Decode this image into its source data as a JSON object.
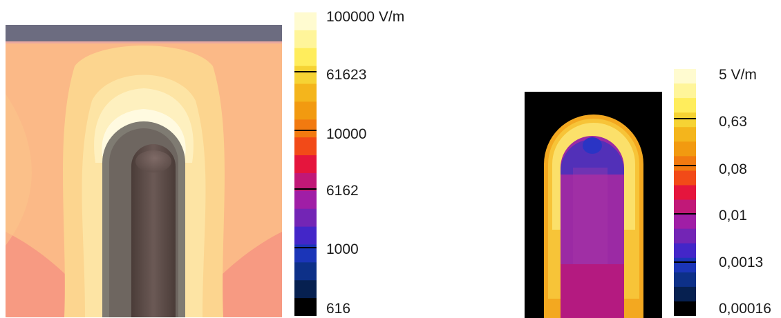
{
  "left_panel": {
    "colors": [
      "#fffbd0",
      "#fff59a",
      "#ffed5c",
      "#f6d334",
      "#f4b51c",
      "#f29a10",
      "#f27a10",
      "#f24a18",
      "#e5153d",
      "#c11878",
      "#a01ea6",
      "#7325b5",
      "#4326c8",
      "#1b35b8",
      "#0d3088",
      "#062050",
      "#000000"
    ],
    "ticks": [
      "100000 V/m",
      "61623",
      "10000",
      "6162",
      "1000",
      "616"
    ],
    "tick_line_color": "#000000"
  },
  "right_panel": {
    "colors": [
      "#fffbd0",
      "#fff59a",
      "#ffed5c",
      "#f6d334",
      "#f4b51c",
      "#f29a10",
      "#f27a10",
      "#f24a18",
      "#e5153d",
      "#c11878",
      "#a01ea6",
      "#7325b5",
      "#4326c8",
      "#1b35b8",
      "#0d3088",
      "#062050",
      "#000000"
    ],
    "ticks": [
      "5 V/m",
      "0,63",
      "0,08",
      "0,01",
      "0,0013",
      "0,00016"
    ],
    "tick_line_color": "#000000"
  }
}
